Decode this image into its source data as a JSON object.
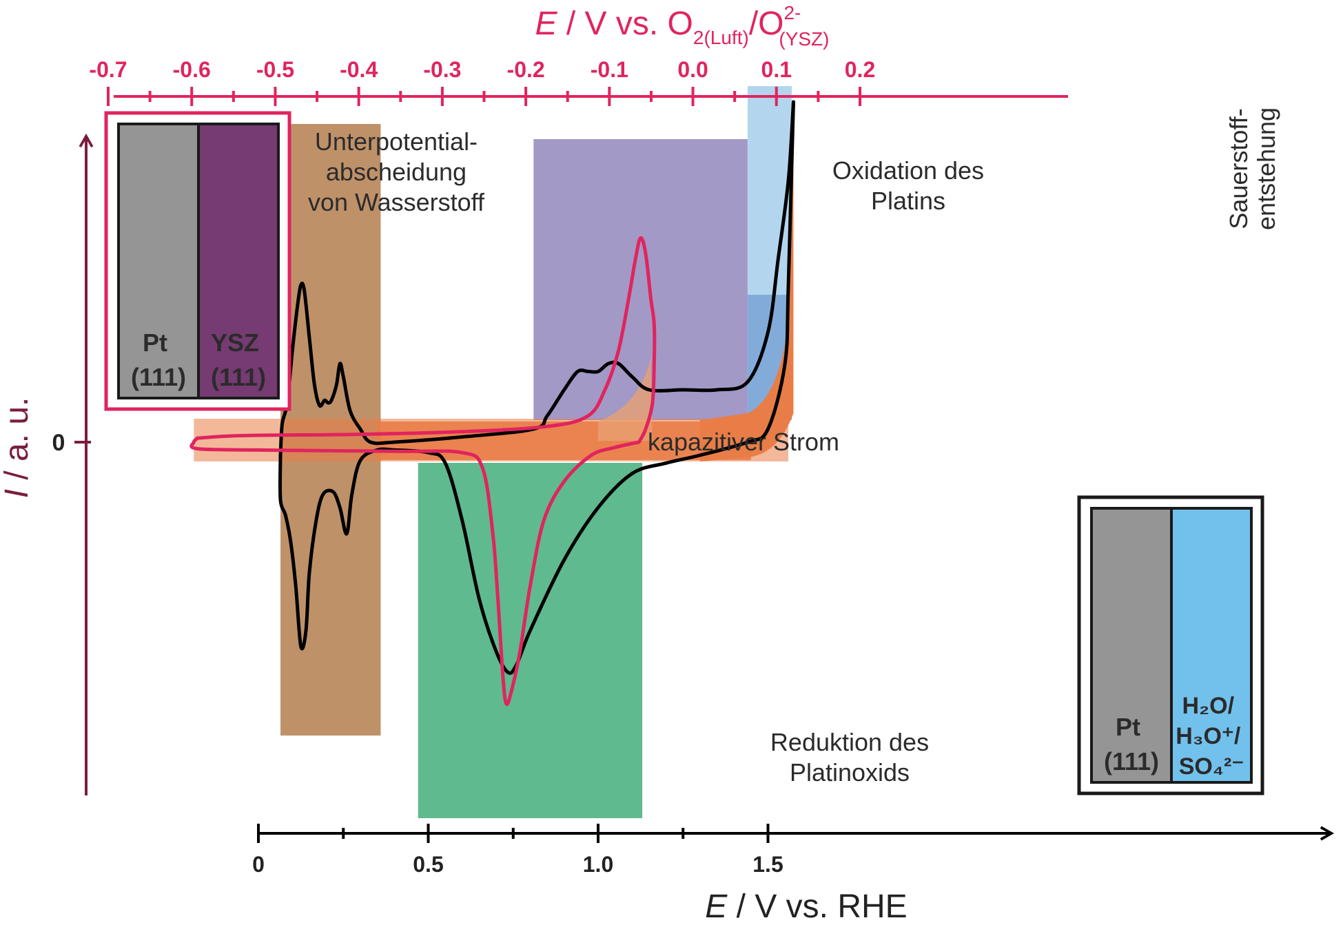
{
  "chart_data": {
    "type": "line",
    "axes": {
      "x_bottom": {
        "label_symbol": "E",
        "label_rest": " / V vs. RHE",
        "range": [
          0,
          1.58
        ],
        "ticks": [
          "0",
          "0.5",
          "1.0",
          "1.5"
        ],
        "tick_values": [
          0,
          0.5,
          1.0,
          1.5
        ],
        "color": "#000000"
      },
      "x_top": {
        "label_symbol": "E",
        "label_rest": " / V vs. O",
        "label_sub1": "2(Luft)",
        "label_mid": "/O",
        "label_sup": "2-",
        "label_sub2": "(YSZ)",
        "range": [
          -0.725,
          0.2
        ],
        "ticks": [
          "-0.7",
          "-0.6",
          "-0.5",
          "-0.4",
          "-0.3",
          "-0.2",
          "-0.1",
          "0.0",
          "0.1",
          "0.2"
        ],
        "tick_values": [
          -0.7,
          -0.6,
          -0.5,
          -0.4,
          -0.3,
          -0.2,
          -0.1,
          0.0,
          0.1,
          0.2
        ],
        "color": "#e0245e"
      },
      "y": {
        "label_symbol": "I",
        "label_rest": " / a. u.",
        "zero_label": "0",
        "color": "#7a1e3e"
      }
    },
    "regions": [
      {
        "id": "upd",
        "lines": [
          "Unterpotential-",
          "abscheidung",
          "von Wasserstoff"
        ],
        "x_rhe": [
          0.065,
          0.36
        ],
        "color": "#bf9169"
      },
      {
        "id": "ox",
        "lines": [
          "Oxidation des",
          "Platins"
        ],
        "x_rhe": [
          0.81,
          1.44
        ],
        "color": "#a299c6"
      },
      {
        "id": "o2",
        "lines": [
          "Sauerstoff-",
          "entstehung"
        ],
        "x_rhe": [
          1.44,
          1.57
        ],
        "color": "#b3d6ee"
      },
      {
        "id": "red",
        "lines": [
          "Reduktion des",
          "Platinoxids"
        ],
        "x_rhe": [
          0.47,
          1.13
        ],
        "color": "#60ba8f"
      },
      {
        "id": "cap",
        "lines": [
          "kapazitiver Strom"
        ],
        "x_rhe": [
          -0.19,
          1.56
        ],
        "color": "#e97d47"
      }
    ],
    "series": [
      {
        "id": "pt111-aqueous",
        "color": "#000000",
        "anodic": [
          [
            0.065,
            -0.05
          ],
          [
            0.07,
            0.07
          ],
          [
            0.085,
            0.15
          ],
          [
            0.1,
            0.35
          ],
          [
            0.115,
            0.52
          ],
          [
            0.125,
            0.6
          ],
          [
            0.135,
            0.58
          ],
          [
            0.15,
            0.4
          ],
          [
            0.165,
            0.22
          ],
          [
            0.18,
            0.14
          ],
          [
            0.195,
            0.16
          ],
          [
            0.205,
            0.15
          ],
          [
            0.215,
            0.16
          ],
          [
            0.23,
            0.22
          ],
          [
            0.24,
            0.3
          ],
          [
            0.25,
            0.25
          ],
          [
            0.27,
            0.12
          ],
          [
            0.3,
            0.05
          ],
          [
            0.33,
            0.0
          ],
          [
            0.4,
            0.0
          ],
          [
            0.6,
            0.02
          ],
          [
            0.81,
            0.05
          ],
          [
            0.85,
            0.1
          ],
          [
            0.9,
            0.2
          ],
          [
            0.94,
            0.27
          ],
          [
            0.97,
            0.27
          ],
          [
            1.0,
            0.27
          ],
          [
            1.03,
            0.3
          ],
          [
            1.06,
            0.3
          ],
          [
            1.1,
            0.25
          ],
          [
            1.15,
            0.2
          ],
          [
            1.25,
            0.2
          ],
          [
            1.35,
            0.2
          ],
          [
            1.44,
            0.23
          ],
          [
            1.5,
            0.42
          ],
          [
            1.53,
            0.7
          ],
          [
            1.56,
            1.0
          ],
          [
            1.575,
            1.3
          ]
        ],
        "cathodic": [
          [
            1.575,
            1.3
          ],
          [
            1.56,
            0.6
          ],
          [
            1.55,
            0.3
          ],
          [
            1.5,
            0.05
          ],
          [
            1.44,
            0.0
          ],
          [
            1.3,
            -0.05
          ],
          [
            1.2,
            -0.08
          ],
          [
            1.1,
            -0.12
          ],
          [
            1.0,
            -0.25
          ],
          [
            0.9,
            -0.45
          ],
          [
            0.8,
            -0.72
          ],
          [
            0.76,
            -0.85
          ],
          [
            0.735,
            -0.88
          ],
          [
            0.7,
            -0.8
          ],
          [
            0.65,
            -0.6
          ],
          [
            0.6,
            -0.3
          ],
          [
            0.55,
            -0.08
          ],
          [
            0.5,
            -0.04
          ],
          [
            0.4,
            -0.03
          ],
          [
            0.35,
            -0.03
          ],
          [
            0.3,
            -0.07
          ],
          [
            0.275,
            -0.2
          ],
          [
            0.26,
            -0.35
          ],
          [
            0.24,
            -0.25
          ],
          [
            0.22,
            -0.19
          ],
          [
            0.19,
            -0.2
          ],
          [
            0.17,
            -0.3
          ],
          [
            0.15,
            -0.5
          ],
          [
            0.14,
            -0.72
          ],
          [
            0.125,
            -0.78
          ],
          [
            0.11,
            -0.55
          ],
          [
            0.095,
            -0.38
          ],
          [
            0.08,
            -0.28
          ],
          [
            0.065,
            -0.22
          ],
          [
            0.065,
            -0.05
          ]
        ]
      },
      {
        "id": "pt111-ysz",
        "color": "#e0245e",
        "anodic": [
          [
            -0.18,
            0.015
          ],
          [
            -0.05,
            0.025
          ],
          [
            0.3,
            0.03
          ],
          [
            0.6,
            0.04
          ],
          [
            0.85,
            0.06
          ],
          [
            0.97,
            0.1
          ],
          [
            1.02,
            0.2
          ],
          [
            1.06,
            0.35
          ],
          [
            1.09,
            0.55
          ],
          [
            1.11,
            0.7
          ],
          [
            1.125,
            0.78
          ],
          [
            1.14,
            0.72
          ],
          [
            1.155,
            0.55
          ],
          [
            1.165,
            0.45
          ],
          [
            1.165,
            0.3
          ],
          [
            1.16,
            0.15
          ],
          [
            1.14,
            0.05
          ],
          [
            1.12,
            0.0
          ]
        ],
        "cathodic": [
          [
            1.12,
            0.0
          ],
          [
            1.05,
            -0.02
          ],
          [
            0.98,
            -0.05
          ],
          [
            0.9,
            -0.15
          ],
          [
            0.84,
            -0.3
          ],
          [
            0.8,
            -0.55
          ],
          [
            0.77,
            -0.8
          ],
          [
            0.745,
            -0.95
          ],
          [
            0.73,
            -1.0
          ],
          [
            0.72,
            -0.9
          ],
          [
            0.705,
            -0.6
          ],
          [
            0.69,
            -0.35
          ],
          [
            0.66,
            -0.1
          ],
          [
            0.6,
            -0.04
          ],
          [
            0.4,
            -0.035
          ],
          [
            0.0,
            -0.03
          ],
          [
            -0.18,
            -0.025
          ],
          [
            -0.19,
            0.0
          ],
          [
            -0.18,
            0.015
          ]
        ]
      }
    ],
    "insets": [
      {
        "id": "inset-ysz",
        "left_label": [
          "Pt",
          "(111)"
        ],
        "right_label": [
          "YSZ",
          "(111)"
        ],
        "left_color": "#959595",
        "right_color": "#763b72",
        "frame_color": "#e0245e"
      },
      {
        "id": "inset-aq",
        "left_label": [
          "Pt",
          "(111)"
        ],
        "right_label": [
          "H₂O/",
          "H₃O⁺/",
          "SO₄²⁻"
        ],
        "left_color": "#959595",
        "right_color": "#72c1ec",
        "frame_color": "#000000"
      }
    ],
    "grid": false,
    "legend": "none"
  }
}
